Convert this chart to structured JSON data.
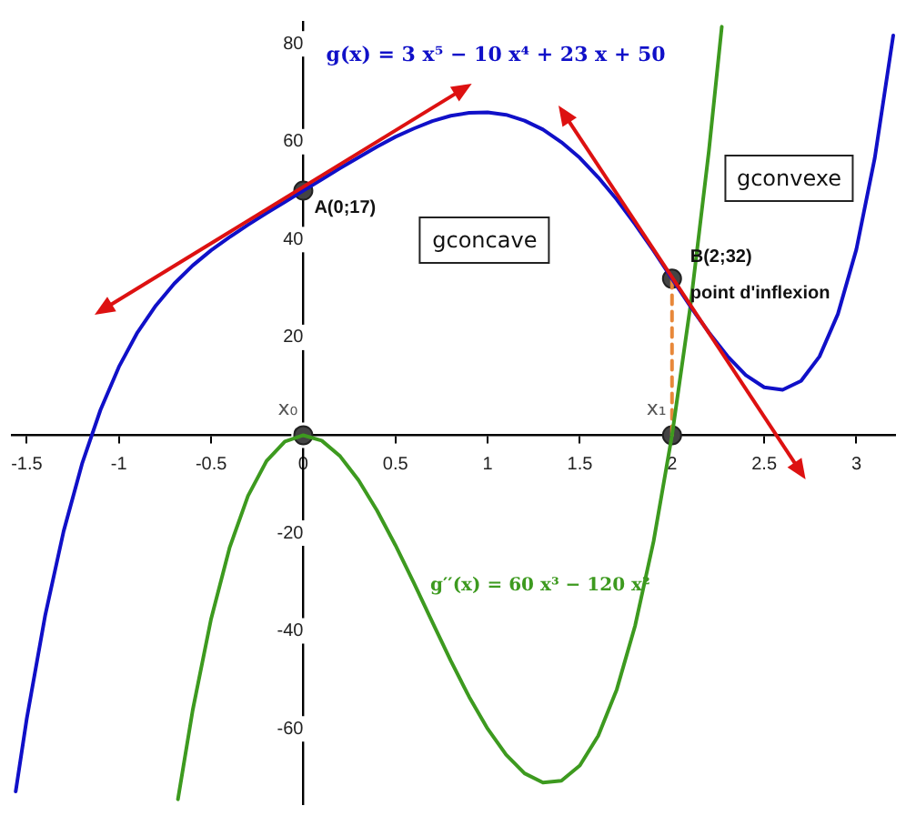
{
  "chart_data": {
    "type": "line",
    "xlim": [
      -1.58,
      3.21
    ],
    "ylim": [
      -75.4,
      84.5
    ],
    "xticks": [
      -1.5,
      -1,
      -0.5,
      0,
      0.5,
      1,
      1.5,
      2,
      2.5,
      3
    ],
    "yticks": [
      -60,
      -40,
      -20,
      0,
      20,
      40,
      60,
      80
    ],
    "grid": false,
    "legend": false,
    "marker": "none",
    "series": [
      {
        "name": "g(x) = 3 x⁵ − 10 x⁴ + 23 x + 50",
        "color": "#1010c8",
        "x": [
          -1.56,
          -1.5,
          -1.4,
          -1.3,
          -1.2,
          -1.1,
          -1,
          -0.9,
          -0.8,
          -0.7,
          -0.6,
          -0.5,
          -0.4,
          -0.3,
          -0.2,
          -0.1,
          0,
          0.1,
          0.2,
          0.3,
          0.4,
          0.5,
          0.6,
          0.7,
          0.8,
          0.9,
          1,
          1.1,
          1.2,
          1.3,
          1.4,
          1.5,
          1.6,
          1.7,
          1.8,
          1.9,
          2,
          2.1,
          2.2,
          2.3,
          2.4,
          2.5,
          2.6,
          2.7,
          2.8,
          2.9,
          3,
          3.1,
          3.2
        ],
        "values": [
          -72.8,
          -57.9,
          -36.8,
          -19.6,
          -5.8,
          5.2,
          14,
          21,
          26.5,
          31,
          34.7,
          37.8,
          40.5,
          43,
          45.4,
          47.7,
          50,
          52.3,
          54.6,
          56.8,
          59,
          61,
          62.7,
          64.2,
          65.3,
          65.9,
          66,
          65.5,
          64.3,
          62.5,
          59.9,
          56.7,
          52.7,
          48.2,
          43.1,
          37.7,
          32,
          26.3,
          21,
          16.2,
          12.3,
          9.8,
          9.3,
          11.1,
          16.1,
          24.8,
          38,
          56.7,
          81.7
        ]
      },
      {
        "name": "g′′(x) = 60 x³ − 120 x²",
        "color": "#3d9a1f",
        "x": [
          -0.68,
          -0.6,
          -0.5,
          -0.4,
          -0.3,
          -0.2,
          -0.1,
          0,
          0.1,
          0.2,
          0.3,
          0.4,
          0.5,
          0.6,
          0.7,
          0.8,
          0.9,
          1,
          1.1,
          1.2,
          1.3,
          1.4,
          1.5,
          1.6,
          1.7,
          1.8,
          1.9,
          2,
          2.1,
          2.2,
          2.27
        ],
        "values": [
          -74.4,
          -56.2,
          -37.5,
          -23,
          -12.4,
          -5.3,
          -1.3,
          0,
          -1.1,
          -4.3,
          -9.2,
          -15.4,
          -22.5,
          -30.2,
          -38.2,
          -46.1,
          -53.5,
          -60,
          -65.3,
          -69.1,
          -71,
          -70.6,
          -67.5,
          -61.4,
          -52,
          -38.9,
          -21.7,
          0,
          26.5,
          58.1,
          83.5
        ]
      },
      {
        "color": "#e8883a",
        "line_style": "dashed",
        "x": [
          2,
          2
        ],
        "values": [
          0,
          32
        ]
      },
      {
        "type": "scatter",
        "marker": "circle",
        "color": "#444444",
        "x": [
          0,
          2,
          0,
          2
        ],
        "values": [
          50,
          32,
          0,
          0
        ]
      }
    ],
    "annotations": [
      "A(0;17)",
      "B(2;32)",
      "point d'inflexion",
      "x₀",
      "x₁",
      "gconcave",
      "gconvexe"
    ]
  }
}
